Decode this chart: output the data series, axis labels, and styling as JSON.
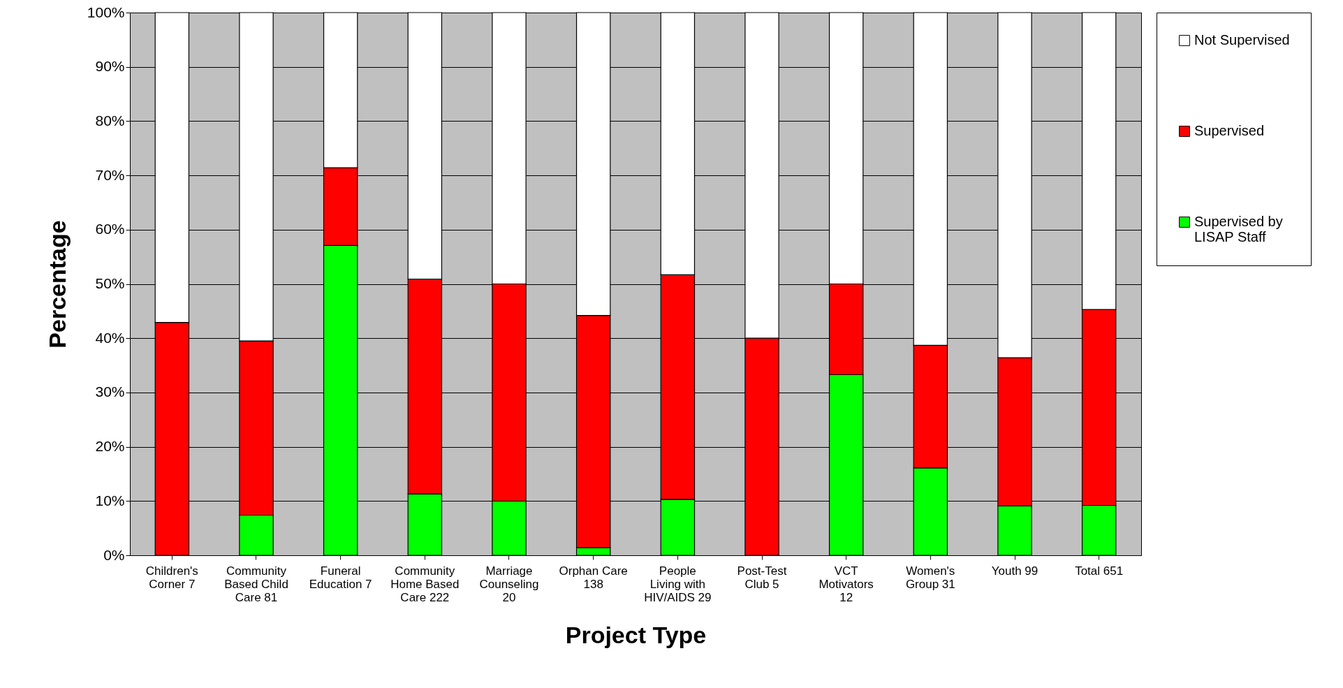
{
  "chart_data": {
    "type": "bar",
    "stacked": true,
    "xlabel": "Project Type",
    "ylabel": "Percentage",
    "categories": [
      "Children's Corner 7",
      "Community Based Child Care 81",
      "Funeral Education 7",
      "Community Home Based Care 222",
      "Marriage Counseling 20",
      "Orphan Care 138",
      "People Living with HIV/AIDS 29",
      "Post-Test Club 5",
      "VCT Motivators 12",
      "Women's Group 31",
      "Youth 99",
      "Total 651"
    ],
    "series": [
      {
        "name": "Supervised by LISAP Staff",
        "color": "#00ff00",
        "values": [
          0,
          7.4,
          57.1,
          11.3,
          10,
          1.4,
          10.3,
          0,
          33.3,
          16.1,
          9.1,
          9.2
        ]
      },
      {
        "name": "Supervised",
        "color": "#ff0000",
        "values": [
          42.9,
          32.1,
          14.3,
          39.6,
          40,
          42.8,
          41.4,
          40,
          16.7,
          22.6,
          27.3,
          36.1
        ]
      },
      {
        "name": "Not Supervised",
        "color": "#ffffff",
        "values": [
          57.1,
          60.5,
          28.6,
          49.1,
          50,
          55.8,
          48.3,
          60,
          50,
          61.3,
          63.6,
          54.7
        ]
      }
    ],
    "ylim": [
      0,
      100
    ],
    "yticks": [
      {
        "value": 0,
        "label": "0%"
      },
      {
        "value": 10,
        "label": "10%"
      },
      {
        "value": 20,
        "label": "20%"
      },
      {
        "value": 30,
        "label": "30%"
      },
      {
        "value": 40,
        "label": "40%"
      },
      {
        "value": 50,
        "label": "50%"
      },
      {
        "value": 60,
        "label": "60%"
      },
      {
        "value": 70,
        "label": "70%"
      },
      {
        "value": 80,
        "label": "80%"
      },
      {
        "value": 90,
        "label": "90%"
      },
      {
        "value": 100,
        "label": "100%"
      }
    ],
    "grid": "y",
    "legend": "right"
  }
}
